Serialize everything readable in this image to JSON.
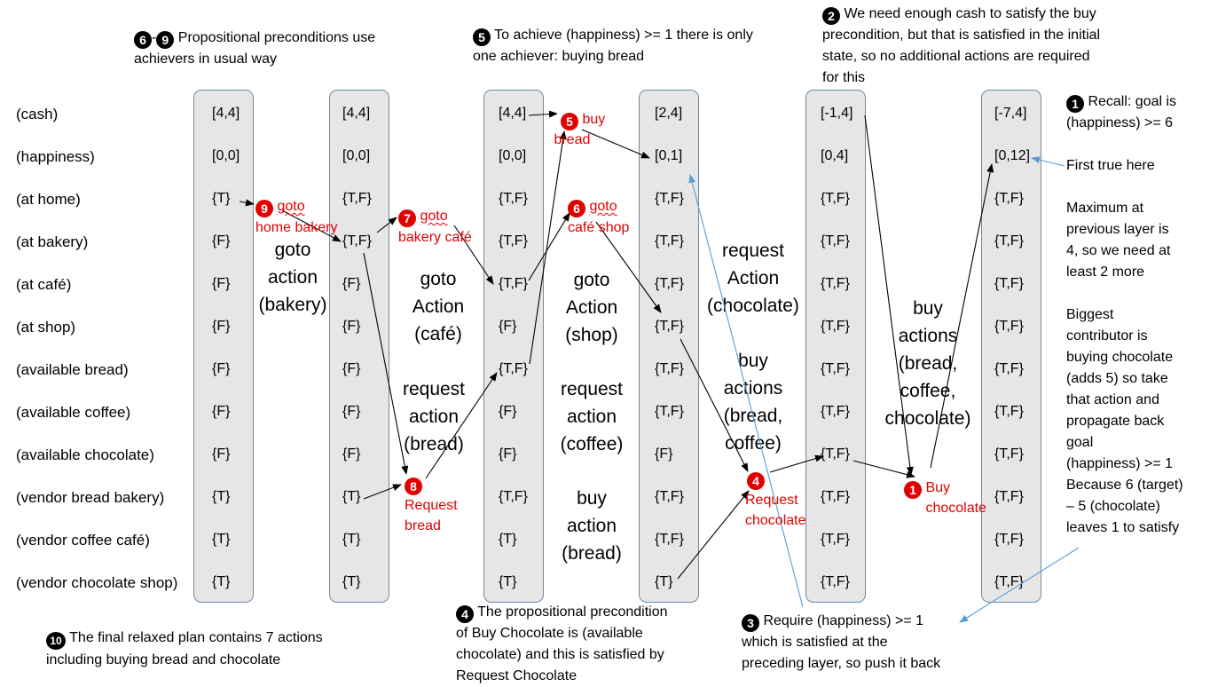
{
  "rows": [
    "(cash)",
    "(happiness)",
    "(at home)",
    "(at bakery)",
    "(at café)",
    "(at shop)",
    "(available bread)",
    "(available coffee)",
    "(available chocolate)",
    "(vendor bread bakery)",
    "(vendor coffee café)",
    "(vendor chocolate shop)"
  ],
  "layers": [
    {
      "cells": [
        "[4,4]",
        "[0,0]",
        "{T}",
        "{F}",
        "{F}",
        "{F}",
        "{F}",
        "{F}",
        "{F}",
        "{T}",
        "{T}",
        "{T}"
      ]
    },
    {
      "cells": [
        "[4,4]",
        "[0,0]",
        "{T,F}",
        "{T,F}",
        "{F}",
        "{F}",
        "{F}",
        "{F}",
        "{F}",
        "{T}",
        "{T}",
        "{T}"
      ]
    },
    {
      "cells": [
        "[4,4]",
        "[0,0]",
        "{T,F}",
        "{T,F}",
        "{T,F}",
        "{F}",
        "{T,F}",
        "{F}",
        "{F}",
        "{T,F}",
        "{T}",
        "{T}"
      ]
    },
    {
      "cells": [
        "[2,4]",
        "[0,1]",
        "{T,F}",
        "{T,F}",
        "{T,F}",
        "{T,F}",
        "{T,F}",
        "{T,F}",
        "{F}",
        "{T,F}",
        "{T,F}",
        "{T}"
      ]
    },
    {
      "cells": [
        "[-1,4]",
        "[0,4]",
        "{T,F}",
        "{T,F}",
        "{T,F}",
        "{T,F}",
        "{T,F}",
        "{T,F}",
        "{T,F}",
        "{T,F}",
        "{T,F}",
        "{T,F}"
      ]
    },
    {
      "cells": [
        "[-7,4]",
        "[0,12]",
        "{T,F}",
        "{T,F}",
        "{T,F}",
        "{T,F}",
        "{T,F}",
        "{T,F}",
        "{T,F}",
        "{T,F}",
        "{T,F}",
        "{T,F}"
      ]
    }
  ],
  "actions": {
    "goto_bakery": "goto\naction\n(bakery)",
    "goto_cafe": "goto\nAction\n(café)",
    "request_bread": "request\naction\n(bread)",
    "goto_shop": "goto\nAction\n(shop)",
    "request_coffee": "request\naction\n(coffee)",
    "buy_bread": "buy\naction\n(bread)",
    "request_chocolate": "request\nAction\n(chocolate)",
    "buy_bread_coffee": "buy\nactions\n(bread,\ncoffee)",
    "buy_all": "buy\nactions\n(bread,\ncoffee,\nchocolate)"
  },
  "steps": {
    "s1_num": "1",
    "s1_label": "Buy\nchocolate",
    "s4_num": "4",
    "s4_label": "Request\nchocolate",
    "s5_num": "5",
    "s5_label": "buy\nbread",
    "s6_num": "6",
    "s6_label_a": "goto",
    "s6_label_b": "café shop",
    "s7_num": "7",
    "s7_label_a": "goto",
    "s7_label_b": "bakery café",
    "s8_num": "8",
    "s8_label": "Request\nbread",
    "s9_num": "9",
    "s9_label_a": "goto",
    "s9_label_b": "home bakery"
  },
  "notes": {
    "n69_a": "6",
    "n69_b": "9",
    "n69_text": "Propositional preconditions use\nachievers in usual way",
    "n5_num": "5",
    "n5_text": "To achieve (happiness) >= 1 there is only\none achiever: buying bread",
    "n2_num": "2",
    "n2_text": "We need enough cash to satisfy the buy\nprecondition, but that is satisfied in the initial\nstate, so no additional actions are required\nfor this",
    "n1_num": "1",
    "n1_text": "Recall: goal is\n(happiness) >= 6",
    "first_true": "First true here",
    "reasoning": "Maximum at\nprevious layer is\n4, so we need at\nleast 2 more\n\nBiggest\ncontributor is\nbuying chocolate\n(adds 5) so take\nthat action and\npropagate back\ngoal\n(happiness) >= 1\nBecause 6 (target)\n– 5 (chocolate)\nleaves 1 to satisfy",
    "n4_num": "4",
    "n4_text": "The propositional precondition\nof Buy Chocolate is (available\nchocolate) and this is satisfied by\nRequest Chocolate",
    "n3_num": "3",
    "n3_text": "Require (happiness) >= 1\nwhich is satisfied at the\npreceding layer, so push it back",
    "n10_num": "10",
    "n10_text": "The final relaxed plan contains 7 actions\nincluding buying bread and chocolate"
  },
  "colors": {
    "column_fill": "#e7e6e6",
    "column_border": "#6f8aa6",
    "red": "#e00000",
    "blue_arrow": "#5b9bd5"
  }
}
